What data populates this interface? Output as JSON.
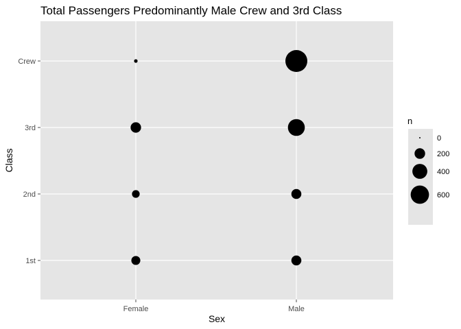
{
  "chart_data": {
    "type": "scatter",
    "title": "Total Passengers Predominantly Male Crew and 3rd Class",
    "xlabel": "Sex",
    "ylabel": "Class",
    "x_categories": [
      "Female",
      "Male"
    ],
    "y_categories": [
      "1st",
      "2nd",
      "3rd",
      "Crew"
    ],
    "points": [
      {
        "x": "Female",
        "y": "1st",
        "n": 145
      },
      {
        "x": "Female",
        "y": "2nd",
        "n": 106
      },
      {
        "x": "Female",
        "y": "3rd",
        "n": 196
      },
      {
        "x": "Female",
        "y": "Crew",
        "n": 23
      },
      {
        "x": "Male",
        "y": "1st",
        "n": 180
      },
      {
        "x": "Male",
        "y": "2nd",
        "n": 179
      },
      {
        "x": "Male",
        "y": "3rd",
        "n": 510
      },
      {
        "x": "Male",
        "y": "Crew",
        "n": 862
      }
    ],
    "legend": {
      "title": "n",
      "entries": [
        {
          "label": "0",
          "value": 0
        },
        {
          "label": "200",
          "value": 200
        },
        {
          "label": "400",
          "value": 400
        },
        {
          "label": "600",
          "value": 600
        }
      ],
      "position": "right"
    },
    "colors": {
      "panel_background": "#e5e5e5",
      "grid": "#ffffff",
      "point": "#000000",
      "tick": "#4d4d4d"
    },
    "grid": true
  }
}
